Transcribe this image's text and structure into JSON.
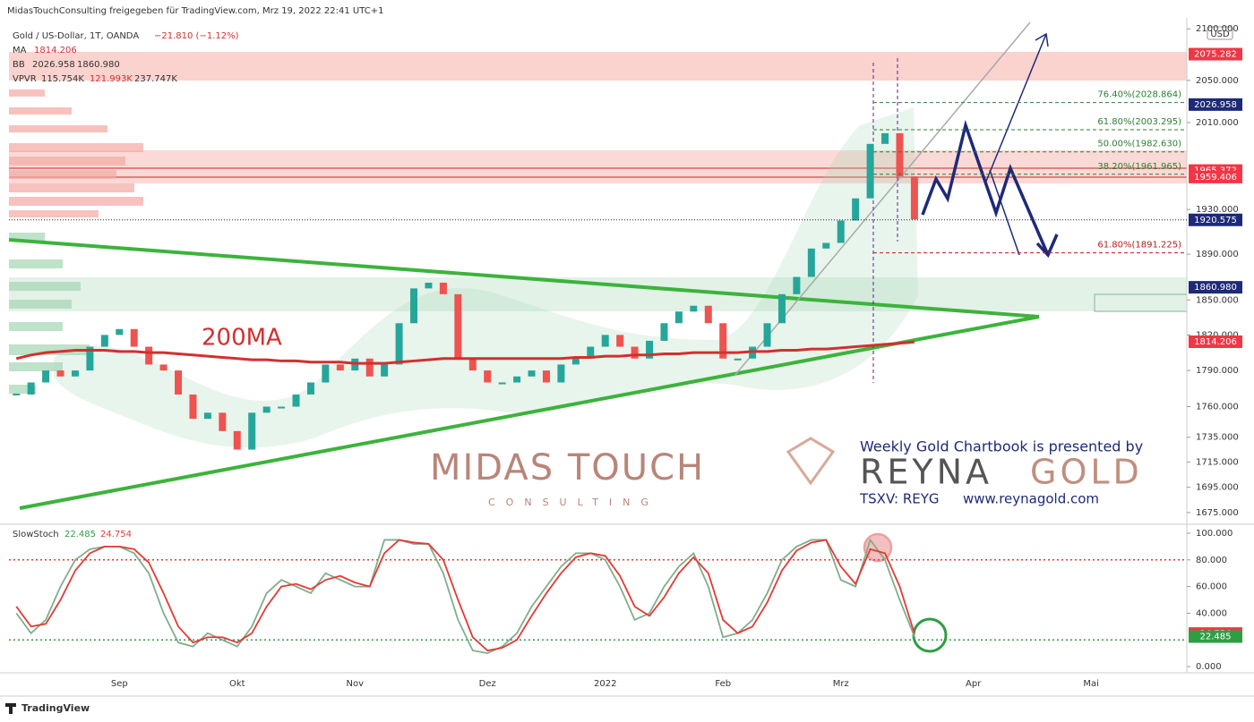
{
  "header": {
    "text": "MidasTouchConsulting freigegeben für TradingView.com, Mrz 19, 2022 22:41 UTC+1"
  },
  "legend": {
    "change": "−21.810 (−1.12%)",
    "ma": "MA",
    "bb": "BB",
    "vpvr": "VPVR",
    "vpvr_values": [
      "115.754K",
      "121.993K",
      "237.747K"
    ]
  },
  "annotations": {
    "ma_label": "200MA",
    "currency": "USD"
  },
  "watermark": {
    "left_title": "MIDAS TOUCH",
    "left_subtitle": "CONSULTING",
    "right_intro": "Weekly Gold Chartbook is presented by",
    "right_brand_a": "REYNA",
    "right_brand_b": "GOLD",
    "right_ticker": "TSXV: REYG",
    "right_url": "www.reynagold.com"
  },
  "footer": {
    "brand": "TradingView"
  },
  "chart_data": [
    {
      "type": "candlestick",
      "title": "Gold / US-Dollar, 1T, OANDA",
      "log_scale": true,
      "categories": [
        null,
        null,
        null,
        null,
        null,
        null,
        null,
        "Sep",
        null,
        null,
        null,
        null,
        null,
        null,
        null,
        "Okt",
        null,
        null,
        null,
        null,
        null,
        null,
        null,
        "Nov",
        null,
        null,
        null,
        null,
        null,
        null,
        null,
        null,
        "Dez",
        null,
        null,
        null,
        null,
        null,
        null,
        null,
        "2022",
        null,
        null,
        null,
        null,
        null,
        null,
        null,
        "Feb",
        null,
        null,
        null,
        null,
        null,
        null,
        null,
        "Mrz",
        null,
        null,
        null,
        null,
        null,
        null,
        null,
        null,
        "Apr",
        null,
        null,
        null,
        null,
        null,
        null,
        null,
        "Mai",
        null,
        null,
        null,
        null,
        null,
        null
      ],
      "series": [
        {
          "color": "#26a69a",
          "down_color": "#ef5350",
          "values": [
            1770,
            1780,
            1790,
            1785,
            1790,
            1810,
            1820,
            1825,
            1810,
            1795,
            1790,
            1770,
            1750,
            1755,
            1740,
            1725,
            1755,
            1760,
            1760,
            1770,
            1780,
            1795,
            1790,
            1800,
            1785,
            1795,
            1830,
            1860,
            1865,
            1855,
            1800,
            1790,
            1780,
            1780,
            1785,
            1790,
            1780,
            1795,
            1800,
            1810,
            1820,
            1810,
            1800,
            1815,
            1830,
            1840,
            1845,
            1830,
            1800,
            1800,
            1810,
            1830,
            1855,
            1870,
            1895,
            1900,
            1920,
            1940,
            1990,
            2000,
            1960,
            1921,
            null,
            null,
            null,
            null,
            null,
            null,
            null,
            null,
            null,
            null,
            null,
            null,
            null,
            null,
            null,
            null,
            null,
            null
          ]
        },
        {
          "name": "MA",
          "color": "#d32f2f",
          "values": [
            1800,
            1803,
            1805,
            1806,
            1807,
            1807,
            1807,
            1806,
            1806,
            1805,
            1805,
            1804,
            1803,
            1802,
            1801,
            1800,
            1799,
            1799,
            1798,
            1798,
            1797,
            1797,
            1797,
            1796,
            1796,
            1796,
            1797,
            1798,
            1799,
            1800,
            1800,
            1800,
            1800,
            1800,
            1800,
            1800,
            1800,
            1800,
            1801,
            1801,
            1802,
            1802,
            1803,
            1803,
            1804,
            1804,
            1805,
            1805,
            1805,
            1805,
            1806,
            1806,
            1807,
            1807,
            1808,
            1808,
            1809,
            1810,
            1811,
            1812,
            1813,
            1814,
            null,
            null,
            null,
            null,
            null,
            null,
            null,
            null,
            null,
            null,
            null,
            null,
            null,
            null,
            null,
            null,
            null,
            null
          ]
        }
      ],
      "ylim": [
        1670,
        2109
      ],
      "yticks": [
        {
          "value": 2100,
          "label": "2100.000"
        },
        {
          "value": 2050,
          "label": "2050.000"
        },
        {
          "value": 2010,
          "label": "2010.000"
        },
        {
          "value": 1930,
          "label": "1930.000"
        },
        {
          "value": 1890,
          "label": "1890.000"
        },
        {
          "value": 1850,
          "label": "1850.000"
        },
        {
          "value": 1820,
          "label": "1820.000"
        },
        {
          "value": 1790,
          "label": "1790.000"
        },
        {
          "value": 1760,
          "label": "1760.000"
        },
        {
          "value": 1735,
          "label": "1735.000"
        },
        {
          "value": 1715,
          "label": "1715.000"
        },
        {
          "value": 1695,
          "label": "1695.000"
        },
        {
          "value": 1675,
          "label": "1675.000"
        }
      ],
      "price_labels": [
        {
          "value": 2075.282,
          "color": "#f23645"
        },
        {
          "value": 2026.958,
          "color": "#1e2a78"
        },
        {
          "value": 1965.372,
          "color": "#f23645"
        },
        {
          "value": 1959.406,
          "color": "#f23645"
        },
        {
          "value": 1920.575,
          "color": "#1e2a78"
        },
        {
          "value": 1860.98,
          "label": "1860.980",
          "color": "#1e2a78"
        },
        {
          "value": 1814.206,
          "color": "#f23645"
        }
      ],
      "fib_levels": [
        {
          "value": 2028.864,
          "label": "76.40%(2028.864)",
          "color": "#2e7d32"
        },
        {
          "value": 2003.295,
          "label": "61.80%(2003.295)",
          "color": "#2e7d32"
        },
        {
          "value": 1982.63,
          "label": "50.00%(1982.630)",
          "color": "#2e7d32"
        },
        {
          "value": 1961.965,
          "label": "38.20%(1961.965)",
          "color": "#2e7d32"
        },
        {
          "value": 1891.225,
          "label": "61.80%(1891.225)",
          "color": "#b71c1c"
        }
      ]
    },
    {
      "type": "line",
      "title": "SlowStoch",
      "series": [
        {
          "color": "#7fae8c",
          "values": [
            40,
            25,
            35,
            60,
            80,
            88,
            90,
            90,
            85,
            70,
            40,
            18,
            15,
            25,
            20,
            15,
            30,
            55,
            65,
            60,
            55,
            70,
            65,
            60,
            60,
            95,
            95,
            92,
            92,
            70,
            35,
            12,
            10,
            15,
            25,
            45,
            60,
            75,
            85,
            85,
            80,
            60,
            35,
            40,
            60,
            75,
            85,
            60,
            22,
            25,
            35,
            55,
            80,
            90,
            95,
            95,
            65,
            60,
            95,
            80,
            50,
            22.485,
            null,
            null,
            null,
            null,
            null,
            null,
            null,
            null,
            null,
            null,
            null,
            null,
            null,
            null,
            null,
            null,
            null,
            null
          ]
        },
        {
          "color": "#e53935",
          "values": [
            45,
            30,
            32,
            50,
            72,
            85,
            90,
            90,
            88,
            78,
            55,
            30,
            18,
            22,
            22,
            18,
            25,
            45,
            60,
            62,
            58,
            65,
            68,
            63,
            60,
            85,
            95,
            93,
            92,
            80,
            50,
            22,
            12,
            14,
            20,
            38,
            55,
            70,
            82,
            85,
            83,
            68,
            45,
            38,
            52,
            70,
            82,
            70,
            35,
            25,
            30,
            48,
            72,
            87,
            93,
            95,
            75,
            62,
            88,
            85,
            60,
            24.754,
            null,
            null,
            null,
            null,
            null,
            null,
            null,
            null,
            null,
            null,
            null,
            null,
            null,
            null,
            null,
            null,
            null,
            null
          ]
        }
      ],
      "ylim": [
        0,
        100
      ],
      "yticks": [
        {
          "value": 0,
          "label": "0.000"
        },
        {
          "value": 40,
          "label": "40.000"
        },
        {
          "value": 60,
          "label": "60.000"
        },
        {
          "value": 80,
          "label": "80.000"
        },
        {
          "value": 100,
          "label": "100.000"
        }
      ],
      "hlines": [
        {
          "value": 80,
          "color": "#e53935"
        },
        {
          "value": 20,
          "color": "#2e9e44"
        }
      ],
      "price_labels": [
        {
          "value": 24.754,
          "color": "#f23645"
        },
        {
          "value": 22.485,
          "color": "#2e9e44"
        }
      ]
    }
  ]
}
